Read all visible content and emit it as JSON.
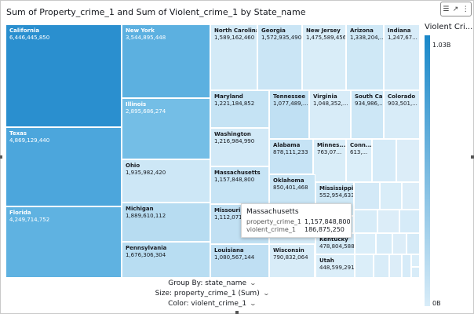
{
  "title": "Sum of Property_crime_1 and Sum of Violent_crime_1 by State_name",
  "toolbar": {
    "icons": [
      "chart-options-icon",
      "expand-icon",
      "more-options-icon"
    ]
  },
  "treemap": {
    "cells": [
      {
        "id": "california",
        "name": "California",
        "value": "6,446,445,850",
        "color": "#2a8fcf",
        "text": "dark"
      },
      {
        "id": "texas",
        "name": "Texas",
        "value": "4,869,129,440",
        "color": "#4ca6dc",
        "text": "dark"
      },
      {
        "id": "florida",
        "name": "Florida",
        "value": "4,249,714,752",
        "color": "#5fb2e1",
        "text": "dark"
      },
      {
        "id": "new-york",
        "name": "New York",
        "value": "3,544,895,448",
        "color": "#5cb0e0",
        "text": "dark"
      },
      {
        "id": "illinois",
        "name": "Illinois",
        "value": "2,895,686,274",
        "color": "#74bee6",
        "text": "dark"
      },
      {
        "id": "ohio",
        "name": "Ohio",
        "value": "1,935,982,420",
        "color": "#cde7f6",
        "text": "light"
      },
      {
        "id": "michigan",
        "name": "Michigan",
        "value": "1,889,610,112",
        "color": "#b7dcf1",
        "text": "light"
      },
      {
        "id": "pennsylvania",
        "name": "Pennsylvania",
        "value": "1,676,306,304",
        "color": "#b8ddf2",
        "text": "light"
      },
      {
        "id": "north-carolina",
        "name": "North Carolina",
        "value": "1,589,162,460",
        "color": "#d3eaf7",
        "text": "light"
      },
      {
        "id": "georgia",
        "name": "Georgia",
        "value": "1,572,935,490",
        "color": "#cae5f5",
        "text": "light"
      },
      {
        "id": "new-jersey",
        "name": "New Jersey",
        "value": "1,475,589,456",
        "color": "#d9edf8",
        "text": "light"
      },
      {
        "id": "arizona",
        "name": "Arizona",
        "value": "1,338,204,...",
        "color": "#cfe8f6",
        "text": "light"
      },
      {
        "id": "indiana",
        "name": "Indiana",
        "value": "1,247,67...",
        "color": "#d8ecf8",
        "text": "light"
      },
      {
        "id": "maryland",
        "name": "Maryland",
        "value": "1,221,184,852",
        "color": "#c5e3f4",
        "text": "light"
      },
      {
        "id": "tennessee",
        "name": "Tennessee",
        "value": "1,077,489,...",
        "color": "#c0e0f3",
        "text": "light"
      },
      {
        "id": "virginia",
        "name": "Virginia",
        "value": "1,048,352,...",
        "color": "#d8ecf8",
        "text": "light"
      },
      {
        "id": "south-carolina",
        "name": "South Ca...",
        "value": "934,986,...",
        "color": "#cde7f6",
        "text": "light"
      },
      {
        "id": "colorado",
        "name": "Colorado",
        "value": "903,501,...",
        "color": "#d8ecf8",
        "text": "light"
      },
      {
        "id": "washington",
        "name": "Washington",
        "value": "1,216,984,990",
        "color": "#d2e9f7",
        "text": "light"
      },
      {
        "id": "massachusetts",
        "name": "Massachusetts",
        "value": "1,157,848,800",
        "color": "#c7e4f5",
        "text": "light"
      },
      {
        "id": "alabama",
        "name": "Alabama",
        "value": "878,111,233",
        "color": "#c6e3f5",
        "text": "light"
      },
      {
        "id": "minnesota",
        "name": "Minnes...",
        "value": "763,07...",
        "color": "#d9edf8",
        "text": "light"
      },
      {
        "id": "connecticut",
        "name": "Conn...",
        "value": "613,...",
        "color": "#dbeef9",
        "text": "light"
      },
      {
        "id": "oklahoma",
        "name": "Oklahoma",
        "value": "850,401,468",
        "color": "#c9e5f5",
        "text": "light"
      },
      {
        "id": "missouri",
        "name": "Missouri",
        "value": "1,112,071,3...",
        "color": "#c1e0f3",
        "text": "light"
      },
      {
        "id": "mississippi",
        "name": "Mississippi",
        "value": "552,954,633",
        "color": "#cfe8f6",
        "text": "light"
      },
      {
        "id": "louisiana",
        "name": "Louisiana",
        "value": "1,080,567,144",
        "color": "#bfdff3",
        "text": "light"
      },
      {
        "id": "wisconsin",
        "name": "Wisconsin",
        "value": "790,832,064",
        "color": "#d8ecf8",
        "text": "light"
      },
      {
        "id": "kentucky",
        "name": "Kentucky",
        "value": "478,804,588",
        "color": "#d4eaf7",
        "text": "light"
      },
      {
        "id": "utah",
        "name": "Utah",
        "value": "448,599,291",
        "color": "#dbeef9",
        "text": "light"
      },
      {
        "id": "small-1",
        "name": "",
        "value": "",
        "color": "#d6ebf8",
        "text": "light"
      },
      {
        "id": "small-2",
        "name": "",
        "value": "",
        "color": "#dcedf8",
        "text": "light"
      },
      {
        "id": "small-3",
        "name": "",
        "value": "",
        "color": "#d3e9f7",
        "text": "light"
      },
      {
        "id": "small-4",
        "name": "",
        "value": "",
        "color": "#d9edf8",
        "text": "light"
      },
      {
        "id": "small-5",
        "name": "",
        "value": "",
        "color": "#dcedf8",
        "text": "light"
      },
      {
        "id": "small-6",
        "name": "",
        "value": "",
        "color": "#d5eaf7",
        "text": "light"
      },
      {
        "id": "small-7",
        "name": "",
        "value": "",
        "color": "#dbeef9",
        "text": "light"
      },
      {
        "id": "small-8",
        "name": "",
        "value": "",
        "color": "#d7ecf8",
        "text": "light"
      },
      {
        "id": "small-9",
        "name": "",
        "value": "",
        "color": "#dcedf8",
        "text": "light"
      },
      {
        "id": "small-10",
        "name": "",
        "value": "",
        "color": "#d6ebf8",
        "text": "light"
      },
      {
        "id": "small-11",
        "name": "",
        "value": "",
        "color": "#dbeef9",
        "text": "light"
      },
      {
        "id": "small-12",
        "name": "",
        "value": "",
        "color": "#d8ecf8",
        "text": "light"
      },
      {
        "id": "small-13",
        "name": "",
        "value": "",
        "color": "#dcedf8",
        "text": "light"
      },
      {
        "id": "small-14",
        "name": "",
        "value": "",
        "color": "#d5eaf7",
        "text": "light"
      },
      {
        "id": "small-15",
        "name": "",
        "value": "",
        "color": "#dbeef9",
        "text": "light"
      },
      {
        "id": "small-16",
        "name": "",
        "value": "",
        "color": "#d8ecf8",
        "text": "light"
      },
      {
        "id": "small-17",
        "name": "",
        "value": "",
        "color": "#dcedf8",
        "text": "light"
      },
      {
        "id": "small-18",
        "name": "",
        "value": "",
        "color": "#d6ebf8",
        "text": "light"
      },
      {
        "id": "small-19",
        "name": "",
        "value": "",
        "color": "#dbeef9",
        "text": "light"
      },
      {
        "id": "small-20",
        "name": "",
        "value": "",
        "color": "#d8ecf8",
        "text": "light"
      }
    ]
  },
  "legend": {
    "title": "Violent Cri...",
    "max_label": "1.03B",
    "min_label": "0B",
    "color_high": "#1a88c9",
    "color_low": "#d8ecf8"
  },
  "field_wells": {
    "group_by": "Group By: state_name",
    "size": "Size: property_crime_1 (Sum)",
    "color": "Color: violent_crime_1"
  },
  "tooltip": {
    "title": "Massachusetts",
    "rows": [
      {
        "label": "property_crime_1",
        "value": "1,157,848,800"
      },
      {
        "label": "violent_crime_1",
        "value": "186,875,250"
      }
    ]
  }
}
